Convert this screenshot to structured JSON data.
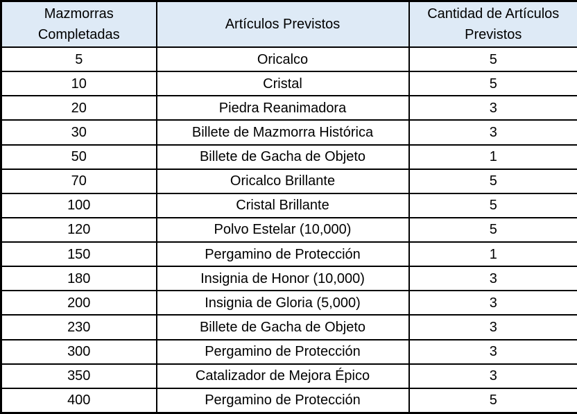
{
  "chart_data": {
    "type": "table",
    "title": "",
    "columns": [
      "Mazmorras Completadas",
      "Artículos Previstos",
      "Cantidad de Artículos Previstos"
    ],
    "rows": [
      [
        "5",
        "Oricalco",
        "5"
      ],
      [
        "10",
        "Cristal",
        "5"
      ],
      [
        "20",
        "Piedra Reanimadora",
        "3"
      ],
      [
        "30",
        "Billete de Mazmorra Histórica",
        "3"
      ],
      [
        "50",
        "Billete de Gacha de Objeto",
        "1"
      ],
      [
        "70",
        "Oricalco Brillante",
        "5"
      ],
      [
        "100",
        "Cristal Brillante",
        "5"
      ],
      [
        "120",
        "Polvo Estelar (10,000)",
        "5"
      ],
      [
        "150",
        "Pergamino de Protección",
        "1"
      ],
      [
        "180",
        "Insignia de Honor (10,000)",
        "3"
      ],
      [
        "200",
        "Insignia de Gloria (5,000)",
        "3"
      ],
      [
        "230",
        "Billete de Gacha de Objeto",
        "3"
      ],
      [
        "300",
        "Pergamino de Protección",
        "3"
      ],
      [
        "350",
        "Catalizador de Mejora Épico",
        "3"
      ],
      [
        "400",
        "Pergamino de Protección",
        "5"
      ]
    ],
    "layout": {
      "grid": true,
      "header_background": "#deeaf6",
      "border_color": "#000000",
      "text_color": "#000000"
    }
  }
}
